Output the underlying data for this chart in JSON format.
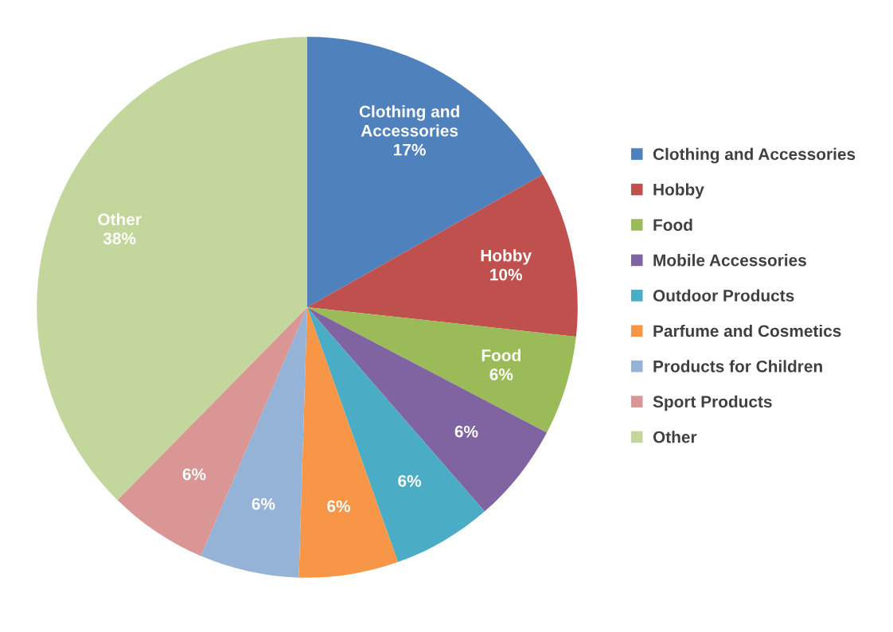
{
  "chart_data": {
    "type": "pie",
    "categories": [
      "Clothing and Accessories",
      "Hobby",
      "Food",
      "Mobile Accessories",
      "Outdoor Products",
      "Parfume and Cosmetics",
      "Products for Children",
      "Sport Products",
      "Other"
    ],
    "values": [
      17,
      10,
      6,
      6,
      6,
      6,
      6,
      6,
      38
    ],
    "colors": [
      "#4f81bd",
      "#c0504d",
      "#9bbb59",
      "#8064a2",
      "#4bacc6",
      "#f79646",
      "#95b3d7",
      "#d99694",
      "#c3d69b"
    ],
    "value_labels": [
      "Clothing and\nAccessories\n17%",
      "Hobby\n10%",
      "Food\n6%",
      "6%",
      "6%",
      "6%",
      "6%",
      "6%",
      "Other\n38%"
    ],
    "legend": "right"
  }
}
